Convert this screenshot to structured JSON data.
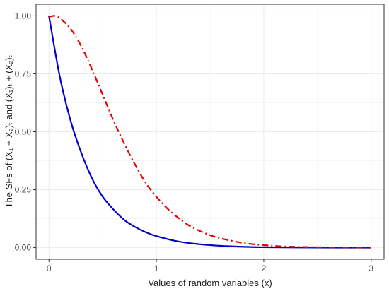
{
  "chart_data": {
    "type": "line",
    "xlabel": "Values of random variables (x)",
    "ylabel": "The SFs of  (X₁ + X₂)ₜ and (X₁)ₜ + (X₂)ₜ",
    "xlim": [
      -0.12,
      3.12
    ],
    "ylim": [
      -0.05,
      1.05
    ],
    "x_ticks": [
      0,
      1,
      2,
      3
    ],
    "x_tick_labels": [
      "0",
      "1",
      "2",
      "3"
    ],
    "y_ticks": [
      0,
      0.25,
      0.5,
      0.75,
      1
    ],
    "y_tick_labels": [
      "0.00",
      "0.25",
      "0.50",
      "0.75",
      "1.00"
    ],
    "grid": true,
    "series": [
      {
        "color": "#0000cc",
        "style": "solid",
        "x": [
          0,
          0.1,
          0.2,
          0.3,
          0.4,
          0.5,
          0.6,
          0.7,
          0.8,
          0.9,
          1.0,
          1.2,
          1.4,
          1.6,
          1.8,
          2.0,
          2.5,
          3.0
        ],
        "y": [
          1.0,
          0.74,
          0.55,
          0.41,
          0.3,
          0.22,
          0.165,
          0.12,
          0.09,
          0.067,
          0.05,
          0.027,
          0.015,
          0.008,
          0.004,
          0.002,
          0.0005,
          0.0001
        ]
      },
      {
        "color": "#e60000",
        "style": "dashdot",
        "x": [
          0,
          0.05,
          0.1,
          0.2,
          0.3,
          0.4,
          0.5,
          0.6,
          0.7,
          0.8,
          0.9,
          1.0,
          1.1,
          1.2,
          1.3,
          1.4,
          1.5,
          1.6,
          1.8,
          2.0,
          2.2,
          2.5,
          3.0
        ],
        "y": [
          0.995,
          1.0,
          0.99,
          0.945,
          0.87,
          0.77,
          0.66,
          0.55,
          0.45,
          0.36,
          0.28,
          0.22,
          0.17,
          0.13,
          0.097,
          0.073,
          0.054,
          0.04,
          0.021,
          0.011,
          0.005,
          0.002,
          0.0003
        ]
      }
    ]
  }
}
